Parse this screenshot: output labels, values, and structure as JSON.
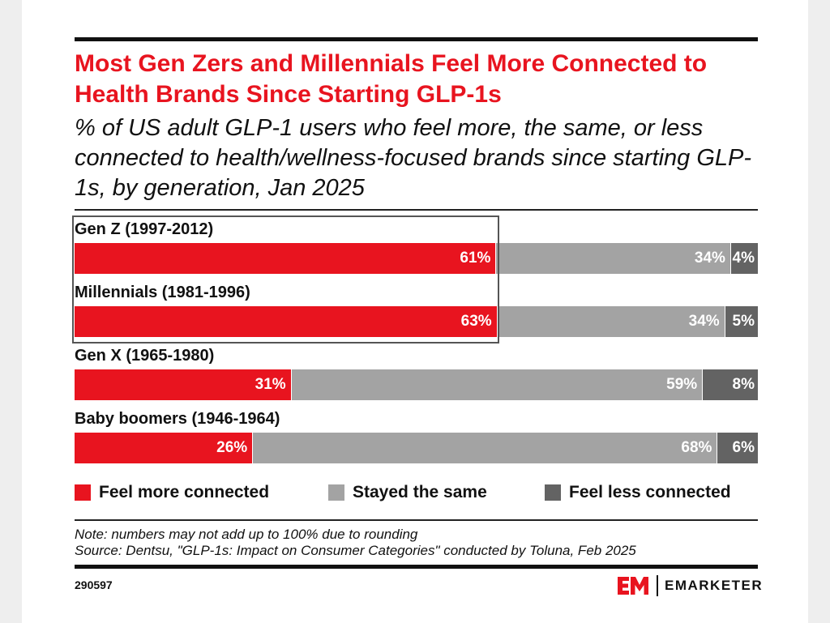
{
  "chart_data": {
    "type": "bar",
    "orientation": "horizontal",
    "stacked": true,
    "title": "Most Gen Zers and Millennials Feel More Connected to Health Brands Since Starting GLP-1s",
    "subtitle": "% of US adult GLP-1 users who feel more, the same, or less connected to health/wellness-focused brands since starting GLP-1s, by generation, Jan 2025",
    "categories": [
      "Gen Z (1997-2012)",
      "Millennials (1981-1996)",
      "Gen X (1965-1980)",
      "Baby boomers (1946-1964)"
    ],
    "series": [
      {
        "name": "Feel more connected",
        "values": [
          61,
          63,
          31,
          26
        ],
        "color": "#e8141f"
      },
      {
        "name": "Stayed the same",
        "values": [
          34,
          34,
          59,
          68
        ],
        "color": "#a3a3a3"
      },
      {
        "name": "Feel less connected",
        "values": [
          4,
          5,
          8,
          6
        ],
        "color": "#636363"
      }
    ],
    "value_format": "%",
    "legend_position": "bottom",
    "highlighted_categories": [
      "Gen Z (1997-2012)",
      "Millennials (1981-1996)"
    ],
    "note": "Note: numbers may not add up to 100% due to rounding",
    "source": "Source: Dentsu, \"GLP-1s: Impact on Consumer Categories\" conducted by Toluna, Feb 2025",
    "chart_id": "290597"
  },
  "brand": {
    "logo_mark": "EM",
    "name": "EMARKETER",
    "colors": {
      "accent": "#e8141f",
      "text": "#111111"
    }
  },
  "icons": {
    "logo": "emarketer-logo-icon"
  }
}
